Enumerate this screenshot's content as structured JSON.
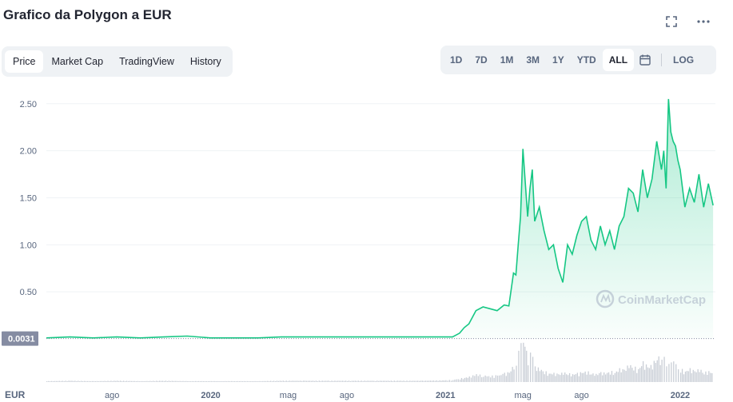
{
  "header": {
    "title": "Grafico da Polygon a EUR"
  },
  "icons": {
    "expand": "expand-icon",
    "more": "more-icon",
    "calendar": "calendar-icon"
  },
  "tabs": [
    {
      "label": "Price",
      "active": true
    },
    {
      "label": "Market Cap",
      "active": false
    },
    {
      "label": "TradingView",
      "active": false
    },
    {
      "label": "History",
      "active": false
    }
  ],
  "ranges": [
    {
      "label": "1D",
      "active": false
    },
    {
      "label": "7D",
      "active": false
    },
    {
      "label": "1M",
      "active": false
    },
    {
      "label": "3M",
      "active": false
    },
    {
      "label": "1Y",
      "active": false
    },
    {
      "label": "YTD",
      "active": false
    },
    {
      "label": "ALL",
      "active": true
    }
  ],
  "log_label": "LOG",
  "watermark": "CoinMarketCap",
  "colors": {
    "line": "#16c784",
    "fill": "#16c784",
    "volume": "#c9ced6",
    "grid": "#eff2f5",
    "badge": "#858ca2"
  },
  "chart_data": {
    "type": "area",
    "title": "Grafico da Polygon a EUR",
    "currency_label": "EUR",
    "start_price_label": "0.0031",
    "start_price": 0.0031,
    "ylim": [
      0,
      2.6
    ],
    "yticks": [
      0.5,
      1.0,
      1.5,
      2.0,
      2.5
    ],
    "ytick_labels": [
      "0.50",
      "1.00",
      "1.50",
      "2.00",
      "2.50"
    ],
    "xticks": [
      {
        "label": "ago",
        "x": 2019.58
      },
      {
        "label": "2020",
        "x": 2020.0
      },
      {
        "label": "mag",
        "x": 2020.33
      },
      {
        "label": "ago",
        "x": 2020.58
      },
      {
        "label": "2021",
        "x": 2021.0
      },
      {
        "label": "mag",
        "x": 2021.33
      },
      {
        "label": "ago",
        "x": 2021.58
      },
      {
        "label": "2022",
        "x": 2022.0
      }
    ],
    "xlim": [
      2019.3,
      2022.15
    ],
    "x": [
      2019.3,
      2019.4,
      2019.5,
      2019.6,
      2019.7,
      2019.8,
      2019.9,
      2020.0,
      2020.1,
      2020.2,
      2020.3,
      2020.4,
      2020.5,
      2020.6,
      2020.7,
      2020.8,
      2020.9,
      2021.0,
      2021.03,
      2021.06,
      2021.08,
      2021.1,
      2021.13,
      2021.16,
      2021.19,
      2021.22,
      2021.25,
      2021.27,
      2021.29,
      2021.3,
      2021.31,
      2021.32,
      2021.33,
      2021.35,
      2021.36,
      2021.37,
      2021.38,
      2021.4,
      2021.42,
      2021.44,
      2021.46,
      2021.48,
      2021.5,
      2021.52,
      2021.54,
      2021.56,
      2021.58,
      2021.6,
      2021.62,
      2021.64,
      2021.66,
      2021.68,
      2021.7,
      2021.72,
      2021.74,
      2021.76,
      2021.78,
      2021.8,
      2021.82,
      2021.84,
      2021.86,
      2021.88,
      2021.9,
      2021.92,
      2021.93,
      2021.94,
      2021.95,
      2021.96,
      2021.97,
      2021.98,
      2021.99,
      2022.0,
      2022.02,
      2022.04,
      2022.06,
      2022.08,
      2022.1,
      2022.12,
      2022.14
    ],
    "y": [
      0.01,
      0.02,
      0.01,
      0.02,
      0.01,
      0.02,
      0.03,
      0.01,
      0.01,
      0.01,
      0.02,
      0.02,
      0.02,
      0.02,
      0.02,
      0.02,
      0.02,
      0.02,
      0.02,
      0.06,
      0.12,
      0.16,
      0.3,
      0.34,
      0.32,
      0.3,
      0.36,
      0.35,
      0.7,
      0.68,
      1.0,
      1.3,
      2.02,
      1.3,
      1.6,
      1.8,
      1.25,
      1.4,
      1.15,
      0.95,
      1.0,
      0.75,
      0.6,
      1.0,
      0.9,
      1.1,
      1.25,
      1.3,
      1.05,
      0.95,
      1.2,
      1.0,
      1.15,
      0.95,
      1.2,
      1.3,
      1.6,
      1.55,
      1.35,
      1.8,
      1.5,
      1.7,
      2.1,
      1.8,
      2.0,
      1.6,
      2.55,
      2.2,
      2.1,
      2.05,
      1.9,
      1.8,
      1.4,
      1.6,
      1.45,
      1.75,
      1.4,
      1.65,
      1.42
    ],
    "volume": [
      0.02,
      0.03,
      0.02,
      0.03,
      0.02,
      0.03,
      0.02,
      0.02,
      0.02,
      0.02,
      0.03,
      0.03,
      0.03,
      0.03,
      0.03,
      0.03,
      0.03,
      0.04,
      0.05,
      0.08,
      0.1,
      0.12,
      0.18,
      0.15,
      0.14,
      0.15,
      0.2,
      0.22,
      0.4,
      0.45,
      0.7,
      0.85,
      1.0,
      0.6,
      0.75,
      0.55,
      0.35,
      0.3,
      0.25,
      0.2,
      0.2,
      0.18,
      0.22,
      0.2,
      0.18,
      0.2,
      0.22,
      0.25,
      0.2,
      0.18,
      0.22,
      0.2,
      0.25,
      0.22,
      0.3,
      0.28,
      0.4,
      0.35,
      0.3,
      0.45,
      0.35,
      0.4,
      0.6,
      0.5,
      0.55,
      0.4,
      0.65,
      0.5,
      0.45,
      0.4,
      0.35,
      0.3,
      0.25,
      0.3,
      0.25,
      0.3,
      0.22,
      0.25,
      0.2
    ],
    "grid": true
  }
}
